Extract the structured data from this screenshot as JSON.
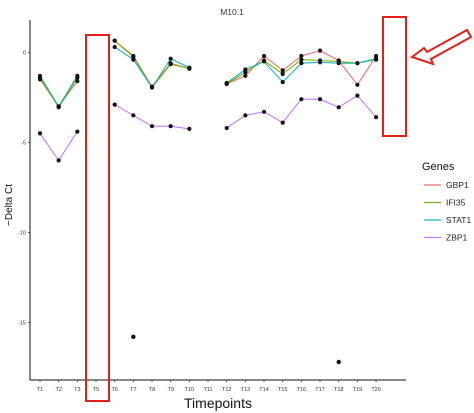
{
  "chart_data": {
    "type": "line",
    "title": "M10.1",
    "xlabel": "Timepoints",
    "ylabel": "−Delta Ct",
    "categories": [
      "T1",
      "T2",
      "T3",
      "T5",
      "T6",
      "T7",
      "T8",
      "T9",
      "T10",
      "T11",
      "T12",
      "T13",
      "T14",
      "T15",
      "T16",
      "T17",
      "T18",
      "T19",
      "T20"
    ],
    "ylim": [
      -18.2,
      1.8
    ],
    "yticks": [
      0,
      -5,
      -10,
      -15
    ],
    "ytick_labels": [
      "0",
      "-5",
      "-10",
      "-15"
    ],
    "legend_title": "Genes",
    "legend_position": "right",
    "grid": false,
    "series": [
      {
        "name": "GBP1",
        "color": "#E8716A",
        "values": [
          -1.5,
          -3.0,
          -1.6,
          null,
          0.65,
          -0.2,
          -1.9,
          -0.6,
          -0.9,
          null,
          -1.75,
          -1.3,
          -0.2,
          -1.0,
          -0.2,
          0.1,
          -0.45,
          -1.8,
          -0.2
        ]
      },
      {
        "name": "IFI35",
        "color": "#7CAE00",
        "values": [
          -1.4,
          -3.05,
          -1.4,
          null,
          0.65,
          -0.25,
          -1.95,
          -0.65,
          -0.9,
          null,
          -1.75,
          -1.1,
          -0.45,
          -1.2,
          -0.4,
          -0.45,
          -0.5,
          -0.6,
          -0.4
        ]
      },
      {
        "name": "STAT1",
        "color": "#1FB4C2",
        "values": [
          -1.3,
          -3.0,
          -1.3,
          null,
          0.3,
          -0.4,
          -1.95,
          -0.35,
          -0.85,
          null,
          -1.7,
          -0.95,
          -0.5,
          -1.65,
          -0.6,
          -0.55,
          -0.6,
          -0.6,
          -0.35
        ]
      },
      {
        "name": "ZBP1",
        "color": "#C77CFF",
        "values": [
          -4.5,
          -6.0,
          -4.4,
          null,
          -2.9,
          -3.5,
          -4.1,
          -4.1,
          -4.25,
          null,
          -4.2,
          -3.5,
          -3.3,
          -3.9,
          -2.6,
          -2.6,
          -3.05,
          -2.4,
          -3.6
        ]
      }
    ],
    "extra_points": [
      {
        "x": "T7",
        "y": -15.8
      },
      {
        "x": "T18",
        "y": -17.2
      }
    ]
  }
}
